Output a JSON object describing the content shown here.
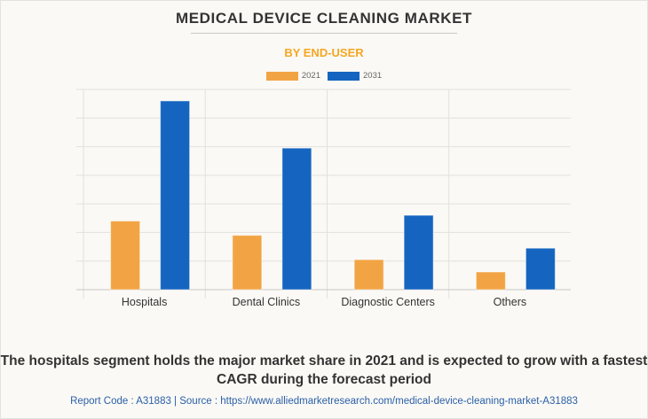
{
  "header": {
    "title": "MEDICAL DEVICE CLEANING MARKET",
    "subtitle": "BY END-USER"
  },
  "colors": {
    "series_2021": "#f2a444",
    "series_2031": "#1565c0",
    "title": "#333333",
    "subtitle": "#f5a623",
    "source": "#2a5fa8"
  },
  "chart_data": {
    "type": "bar",
    "title": "MEDICAL DEVICE CLEANING MARKET",
    "subtitle": "BY END-USER",
    "xlabel": "",
    "ylabel": "",
    "categories": [
      "Hospitals",
      "Dental Clinics",
      "Diagnostic Centers",
      "Others"
    ],
    "series": [
      {
        "name": "2021",
        "color": "#f2a444",
        "values": [
          2.4,
          1.9,
          1.05,
          0.62
        ]
      },
      {
        "name": "2031",
        "color": "#1565c0",
        "values": [
          6.6,
          4.95,
          2.6,
          1.45
        ]
      }
    ],
    "ylim": [
      0,
      7
    ],
    "y_units_note": "relative gridline units (no axis values shown)",
    "grid": true,
    "legend": "top-center"
  },
  "footer": {
    "caption": "The hospitals segment holds the major market share in 2021 and is expected to grow with a fastest CAGR during the forecast period",
    "source": "Report Code : A31883  |  Source : https://www.alliedmarketresearch.com/medical-device-cleaning-market-A31883"
  }
}
